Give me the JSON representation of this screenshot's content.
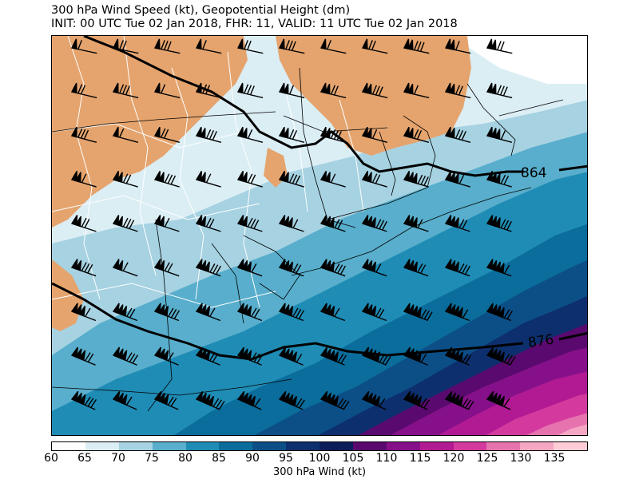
{
  "title_line1": "300 hPa Wind Speed (kt), Geopotential Height (dm)",
  "title_line2": "INIT: 00 UTC Tue 02 Jan 2018, FHR: 11, VALID: 11 UTC Tue 02 Jan 2018",
  "colorbar": {
    "label": "300 hPa Wind (kt)",
    "ticks": [
      "60",
      "65",
      "70",
      "75",
      "80",
      "85",
      "90",
      "95",
      "100",
      "105",
      "110",
      "115",
      "120",
      "125",
      "130",
      "135"
    ],
    "colors": [
      "#ffffff",
      "#dbeef4",
      "#a6d2e2",
      "#58aecc",
      "#1f8cb5",
      "#0a6d9c",
      "#0c4f87",
      "#0d2f6d",
      "#0b1e5a",
      "#5a0a6e",
      "#86108a",
      "#b11a92",
      "#d4399e",
      "#e673ae",
      "#f4a6c3",
      "#ffccd6"
    ]
  },
  "contours": [
    {
      "label": "864"
    },
    {
      "label": "876"
    }
  ],
  "land_color": "#e5a46e"
}
